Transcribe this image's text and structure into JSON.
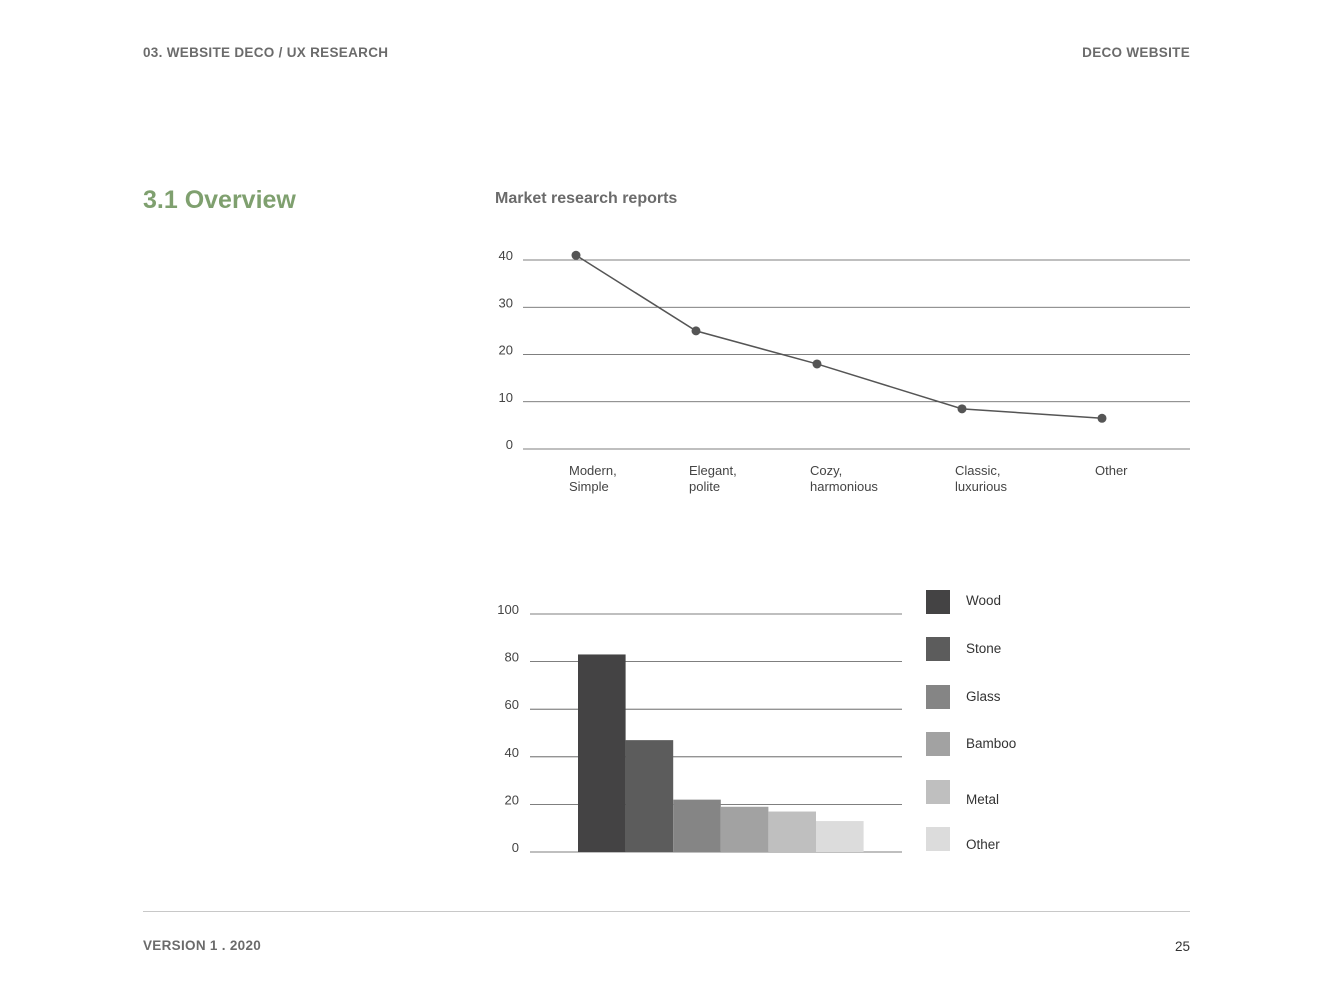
{
  "header": {
    "left": "03. WEBSITE DECO / UX RESEARCH",
    "right": "DECO WEBSITE"
  },
  "section_title": "3.1 Overview",
  "footer": {
    "version": "VERSION 1 . 2020",
    "page_number": "25"
  },
  "colors": {
    "accent": "#7fa06f",
    "line": "#555555",
    "grid": "#555555"
  },
  "chart_data": [
    {
      "type": "line",
      "title": "Market research reports",
      "categories": [
        [
          "Modern,",
          "Simple"
        ],
        [
          "Elegant,",
          "polite"
        ],
        [
          "Cozy,",
          "harmonious"
        ],
        [
          "Classic,",
          "luxurious"
        ],
        [
          "Other"
        ]
      ],
      "values": [
        41,
        25,
        18,
        8.5,
        6.5
      ],
      "yticks": [
        0,
        10,
        20,
        30,
        40
      ],
      "ylim": [
        0,
        40
      ],
      "grid": true
    },
    {
      "type": "bar",
      "categories": [
        "Wood",
        "Stone",
        "Glass",
        "Bamboo",
        "Metal",
        "Other"
      ],
      "values": [
        83,
        47,
        22,
        19,
        17,
        13
      ],
      "colors": [
        "#444344",
        "#5c5c5c",
        "#858585",
        "#a2a2a2",
        "#bfbfbf",
        "#dcdcdc"
      ],
      "yticks": [
        0,
        20,
        40,
        60,
        80,
        100
      ],
      "ylim": [
        0,
        100
      ],
      "grid": true,
      "legend": "right"
    }
  ]
}
